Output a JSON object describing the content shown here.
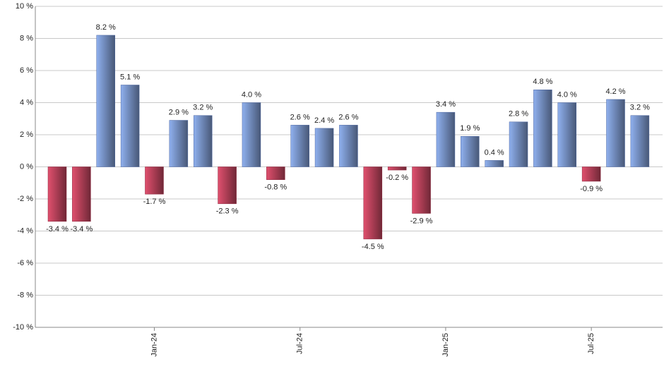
{
  "chart_data": {
    "type": "bar",
    "categories": [
      null,
      null,
      null,
      null,
      "Jan-24",
      null,
      null,
      null,
      null,
      null,
      "Jul-24",
      null,
      null,
      null,
      null,
      null,
      "Jan-25",
      null,
      null,
      null,
      null,
      null,
      "Jul-25",
      null,
      null
    ],
    "values": [
      -3.4,
      -3.4,
      8.2,
      5.1,
      -1.7,
      2.9,
      3.2,
      -2.3,
      4.0,
      -0.8,
      2.6,
      2.4,
      2.6,
      -4.5,
      -0.2,
      -2.9,
      3.4,
      1.9,
      0.4,
      2.8,
      4.8,
      4.0,
      -0.9,
      4.2,
      3.2
    ],
    "value_labels": [
      "-3.4 %",
      "-3.4 %",
      "8.2 %",
      "5.1 %",
      "-1.7 %",
      "2.9 %",
      "3.2 %",
      "-2.3 %",
      "4.0 %",
      "-0.8 %",
      "2.6 %",
      "2.4 %",
      "2.6 %",
      "-4.5 %",
      "-0.2 %",
      "-2.9 %",
      "3.4 %",
      "1.9 %",
      "0.4 %",
      "2.8 %",
      "4.8 %",
      "4.0 %",
      "-0.9 %",
      "4.2 %",
      "3.2 %"
    ],
    "positive_color": "#8fb0ee",
    "negative_color": "#e0506e",
    "ylim": [
      -10,
      10
    ],
    "yticks": [
      {
        "value": -10,
        "label": "-10 %"
      },
      {
        "value": -8,
        "label": "-8 %"
      },
      {
        "value": -6,
        "label": "-6 %"
      },
      {
        "value": -4,
        "label": "-4 %"
      },
      {
        "value": -2,
        "label": "-2 %"
      },
      {
        "value": 0,
        "label": "0 %"
      },
      {
        "value": 2,
        "label": "2 %"
      },
      {
        "value": 4,
        "label": "4 %"
      },
      {
        "value": 6,
        "label": "6 %"
      },
      {
        "value": 8,
        "label": "8 %"
      },
      {
        "value": 10,
        "label": "10 %"
      }
    ],
    "grid": true
  }
}
